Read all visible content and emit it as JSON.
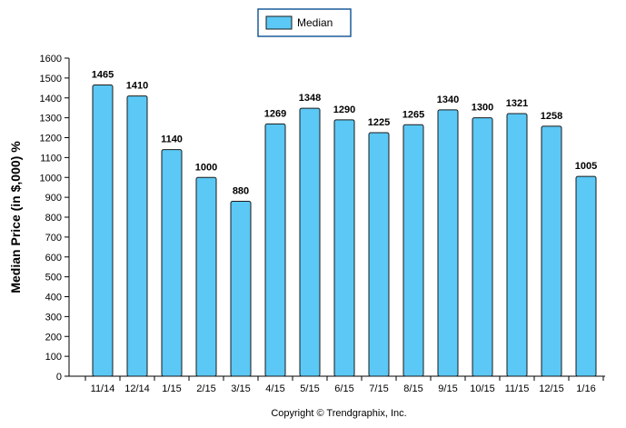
{
  "chart_data": {
    "type": "bar",
    "categories": [
      "11/14",
      "12/14",
      "1/15",
      "2/15",
      "3/15",
      "4/15",
      "5/15",
      "6/15",
      "7/15",
      "8/15",
      "9/15",
      "10/15",
      "11/15",
      "12/15",
      "1/16"
    ],
    "series": [
      {
        "name": "Median",
        "values": [
          1465,
          1410,
          1140,
          1000,
          880,
          1269,
          1348,
          1290,
          1225,
          1265,
          1340,
          1300,
          1321,
          1258,
          1005
        ]
      }
    ],
    "value_labels": [
      "1465",
      "1410",
      "1140",
      "1000",
      "880",
      "1269",
      "1348",
      "1290",
      "1225",
      "1265",
      "1340",
      "1300",
      "1321",
      "1258",
      "1005"
    ],
    "title": "",
    "xlabel": "",
    "ylabel": "Median Price (in $,000) %",
    "ylim": [
      0,
      1600
    ],
    "y_ticks": [
      "0",
      "100",
      "200",
      "300",
      "400",
      "500",
      "600",
      "700",
      "800",
      "900",
      "1000",
      "1100",
      "1200",
      "1300",
      "1400",
      "1500",
      "1600"
    ],
    "legend": {
      "position": "top-center",
      "label": "Median"
    },
    "grid": false,
    "colors": {
      "bar_fill": "#5bc8f5",
      "bar_stroke": "#1a1a1a",
      "legend_border": "#1c5b9a",
      "axis": "#000000"
    },
    "footer": "Copyright © Trendgraphix, Inc."
  }
}
